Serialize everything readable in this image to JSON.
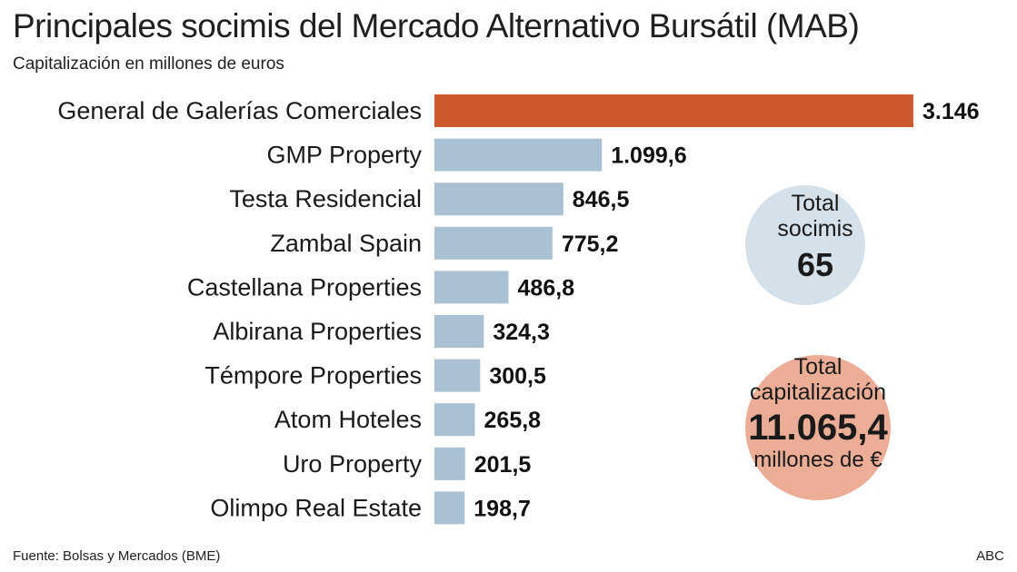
{
  "title": "Principales socimis del Mercado Alternativo Bursátil (MAB)",
  "subtitle": "Capitalización en millones de euros",
  "source": "Fuente: Bolsas y Mercados (BME)",
  "credit": "ABC",
  "colors": {
    "highlight": "#cc5a2c",
    "bar": "#a9c1d2",
    "circle_total_socimis": "#d5e1ea",
    "circle_total_cap": "#ecad96"
  },
  "chart_data": {
    "type": "bar",
    "orientation": "horizontal",
    "categories": [
      "General de Galerías Comerciales",
      "GMP Property",
      "Testa Residencial",
      "Zambal Spain",
      "Castellana Properties",
      "Albirana Properties",
      "Témpore Properties",
      "Atom Hoteles",
      "Uro Property",
      "Olimpo Real Estate"
    ],
    "values": [
      3146,
      1099.6,
      846.5,
      775.2,
      486.8,
      324.3,
      300.5,
      265.8,
      201.5,
      198.7
    ],
    "value_labels": [
      "3.146",
      "1.099,6",
      "846,5",
      "775,2",
      "486,8",
      "324,3",
      "300,5",
      "265,8",
      "201,5",
      "198,7"
    ],
    "highlight_index": 0,
    "xlim": [
      0,
      3146
    ],
    "grid": false,
    "legend": false
  },
  "callouts": {
    "total_socimis": {
      "line1": "Total",
      "line2": "socimis",
      "value": "65"
    },
    "total_cap": {
      "line1": "Total",
      "line2": "capitalización",
      "value": "11.065,4",
      "unit": "millones de €"
    }
  }
}
